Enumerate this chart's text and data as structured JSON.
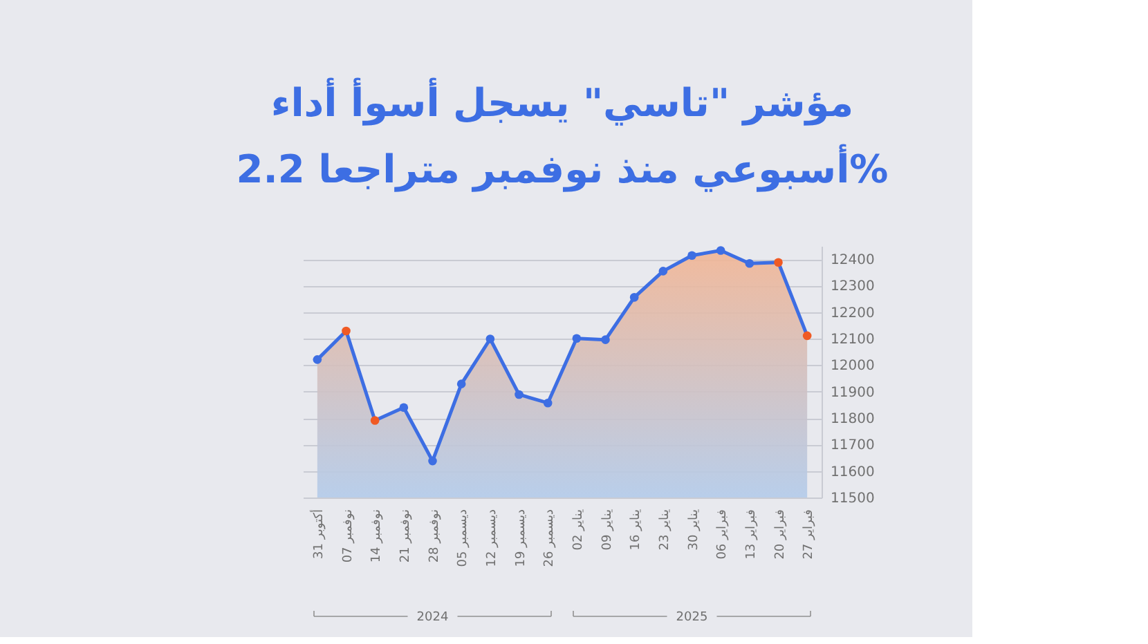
{
  "chart_data": {
    "type": "area",
    "title": [
      "مؤشر \"تاسي\" يسجل أسوأ أداء",
      "أسبوعي منذ نوفمبر متراجعا 2.2%"
    ],
    "categories": [
      "31 أكتوبر",
      "07 نوفمبر",
      "14 نوفمبر",
      "21 نوفمبر",
      "28 نوفمبر",
      "05 ديسمبر",
      "12 ديسمبر",
      "19 ديسمبر",
      "26 ديسمبر",
      "02 يناير",
      "09 يناير",
      "16 يناير",
      "23 يناير",
      "30 يناير",
      "06 فبراير",
      "13 فبراير",
      "20 فبراير",
      "27 فبراير"
    ],
    "series": [
      {
        "color": "#3d6ee3",
        "values": [
          12021,
          12129,
          11791,
          11840,
          11638,
          11929,
          12099,
          11889,
          11857,
          12101,
          12096,
          12256,
          12355,
          12414,
          12433,
          12384,
          12388,
          12111
        ],
        "colors": [
          "#3d6ee3",
          "#f05a24",
          "#f05a24",
          "#3d6ee3",
          "#3d6ee3",
          "#3d6ee3",
          "#3d6ee3",
          "#3d6ee3",
          "#3d6ee3",
          "#3d6ee3",
          "#3d6ee3",
          "#3d6ee3",
          "#3d6ee3",
          "#3d6ee3",
          "#3d6ee3",
          "#3d6ee3",
          "#f05a24",
          "#f05a24"
        ]
      }
    ],
    "ylim": [
      11500,
      12450
    ],
    "yticks": [
      11500,
      11600,
      11700,
      11800,
      11900,
      12000,
      12100,
      12200,
      12300,
      12400
    ],
    "grid": "y",
    "marker": "circle",
    "annotations": [
      "2024",
      "2025"
    ]
  }
}
